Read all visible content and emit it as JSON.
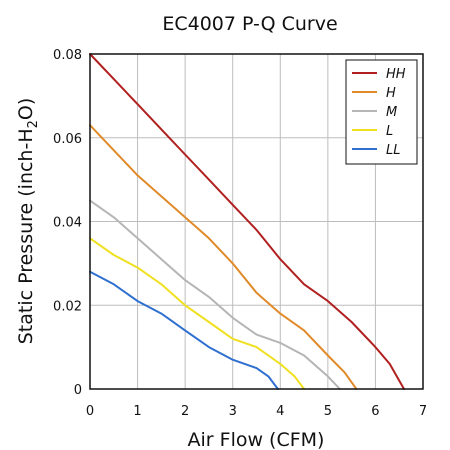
{
  "chart_data": {
    "type": "line",
    "title": "EC4007 P-Q Curve",
    "xlabel": "Air Flow (CFM)",
    "ylabel": {
      "prefix": "Static Pressure (inch-H",
      "sub": "2",
      "suffix": "O)"
    },
    "xlim": [
      0,
      7
    ],
    "ylim": [
      0,
      0.08
    ],
    "x_ticks": [
      "0",
      "1",
      "2",
      "3",
      "4",
      "5",
      "6",
      "7"
    ],
    "y_ticks": [
      "0",
      "0.02",
      "0.04",
      "0.06",
      "0.08"
    ],
    "grid": true,
    "legend_position": "top-right",
    "series": [
      {
        "name": "HH",
        "color": "#b0201f",
        "x": [
          0,
          0.5,
          1,
          1.5,
          2,
          2.5,
          3,
          3.5,
          4,
          4.5,
          5,
          5.5,
          6,
          6.3,
          6.6
        ],
        "y": [
          0.08,
          0.074,
          0.068,
          0.062,
          0.056,
          0.05,
          0.044,
          0.038,
          0.031,
          0.025,
          0.021,
          0.016,
          0.01,
          0.006,
          0.0
        ]
      },
      {
        "name": "H",
        "color": "#e08a2a",
        "x": [
          0,
          0.5,
          1,
          1.5,
          2,
          2.5,
          3,
          3.5,
          4,
          4.5,
          5,
          5.35,
          5.6
        ],
        "y": [
          0.063,
          0.057,
          0.051,
          0.046,
          0.041,
          0.036,
          0.03,
          0.023,
          0.018,
          0.014,
          0.008,
          0.004,
          0.0
        ]
      },
      {
        "name": "M",
        "color": "#b5b5b5",
        "x": [
          0,
          0.5,
          1,
          1.5,
          2,
          2.5,
          3,
          3.5,
          4,
          4.5,
          5,
          5.25
        ],
        "y": [
          0.045,
          0.041,
          0.036,
          0.031,
          0.026,
          0.022,
          0.017,
          0.013,
          0.011,
          0.008,
          0.003,
          0.0
        ]
      },
      {
        "name": "L",
        "color": "#f0e020",
        "x": [
          0,
          0.5,
          1,
          1.5,
          2,
          2.5,
          3,
          3.5,
          4,
          4.3,
          4.5
        ],
        "y": [
          0.036,
          0.032,
          0.029,
          0.025,
          0.02,
          0.016,
          0.012,
          0.01,
          0.006,
          0.003,
          0.0
        ]
      },
      {
        "name": "LL",
        "color": "#2f6fd0",
        "x": [
          0,
          0.5,
          1,
          1.5,
          2,
          2.5,
          3,
          3.5,
          3.75,
          3.95
        ],
        "y": [
          0.028,
          0.025,
          0.021,
          0.018,
          0.014,
          0.01,
          0.007,
          0.005,
          0.003,
          0.0
        ]
      }
    ]
  }
}
